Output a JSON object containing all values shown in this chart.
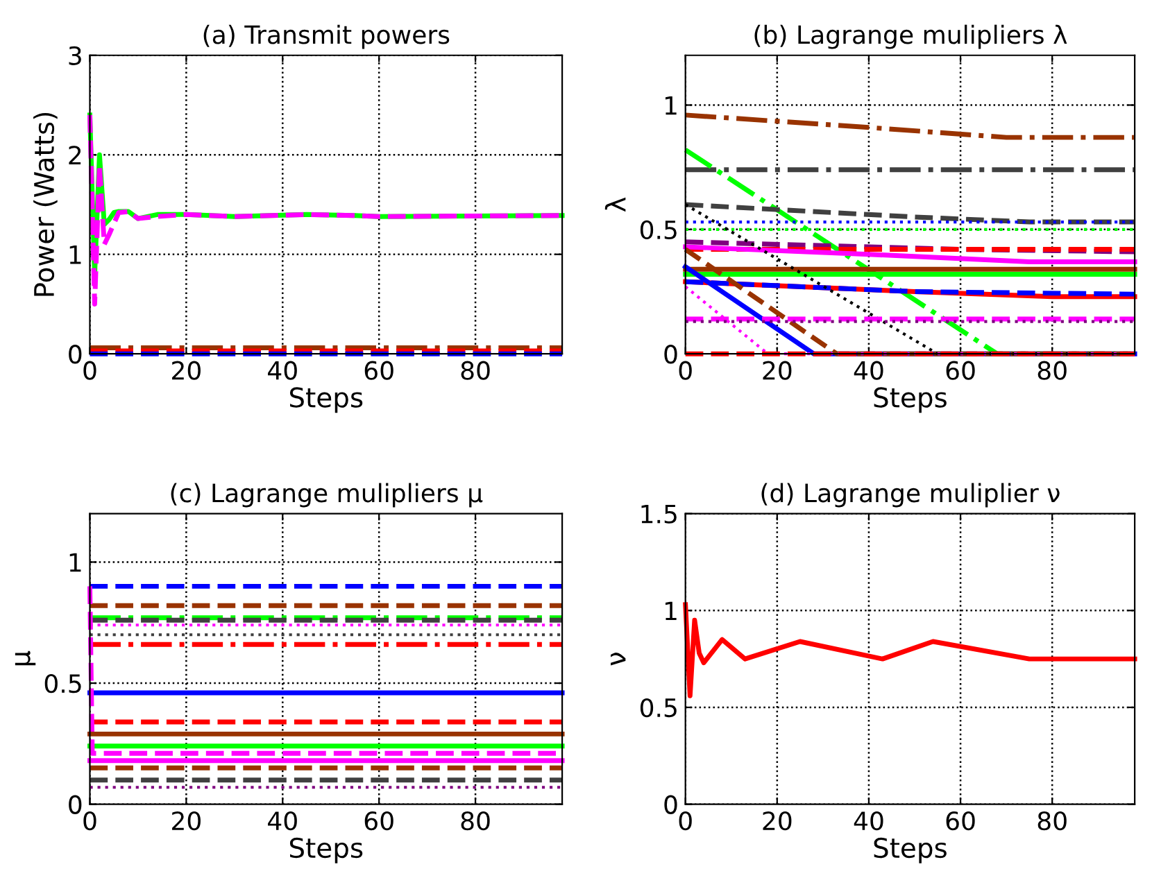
{
  "chart_data": [
    {
      "type": "line",
      "title": "(a) Transmit powers",
      "xlabel": "Steps",
      "ylabel": "Power (Watts)",
      "xlim": [
        0,
        98
      ],
      "xticks": [
        0,
        20,
        40,
        60,
        80
      ],
      "ylim": [
        0,
        3
      ],
      "yticks": [
        0,
        1,
        2,
        3
      ],
      "grid": true,
      "series": [
        {
          "color": "#00ff00",
          "line_style": "solid",
          "x": [
            0,
            1,
            2,
            3,
            4,
            5,
            6,
            8,
            10,
            14,
            20,
            30,
            45,
            55,
            60,
            98
          ],
          "values": [
            2.4,
            0.8,
            2.0,
            1.3,
            1.35,
            1.42,
            1.43,
            1.43,
            1.36,
            1.4,
            1.4,
            1.38,
            1.4,
            1.39,
            1.38,
            1.39
          ]
        },
        {
          "color": "#ff00ff",
          "line_style": "dashed",
          "x": [
            0,
            1,
            2,
            3,
            4,
            6,
            8,
            10,
            14,
            20,
            30,
            45,
            55,
            60,
            98
          ],
          "values": [
            2.4,
            0.5,
            1.9,
            1.1,
            1.2,
            1.42,
            1.43,
            1.36,
            1.38,
            1.4,
            1.38,
            1.4,
            1.39,
            1.38,
            1.39
          ]
        },
        {
          "color": "#993300",
          "line_style": "dashdot",
          "x": [
            0,
            98
          ],
          "values": [
            0.06,
            0.06
          ]
        },
        {
          "color": "#ff0000",
          "line_style": "dashed",
          "x": [
            0,
            98
          ],
          "values": [
            0.03,
            0.03
          ]
        },
        {
          "color": "#0000ff",
          "line_style": "dashed",
          "x": [
            0,
            98
          ],
          "values": [
            0,
            0
          ]
        }
      ]
    },
    {
      "type": "line",
      "title": "(b) Lagrange mulipliers λ",
      "xlabel": "Steps",
      "ylabel": "λ",
      "xlim": [
        0,
        98
      ],
      "xticks": [
        0,
        20,
        40,
        60,
        80
      ],
      "ylim": [
        0,
        1.2
      ],
      "yticks": [
        0,
        0.5,
        1
      ],
      "grid": true,
      "series": [
        {
          "color": "#993300",
          "line_style": "dashdot",
          "x": [
            0,
            40,
            70,
            98
          ],
          "values": [
            0.96,
            0.91,
            0.87,
            0.87
          ]
        },
        {
          "color": "#404040",
          "line_style": "dashdot",
          "x": [
            0,
            98
          ],
          "values": [
            0.74,
            0.74
          ]
        },
        {
          "color": "#00ff00",
          "line_style": "dashdot",
          "x": [
            0,
            68,
            98
          ],
          "values": [
            0.82,
            0,
            0
          ]
        },
        {
          "color": "#404040",
          "line_style": "dashed",
          "x": [
            0,
            50,
            75,
            98
          ],
          "values": [
            0.6,
            0.55,
            0.53,
            0.53
          ]
        },
        {
          "color": "#0000ff",
          "line_style": "dotted",
          "x": [
            0,
            98
          ],
          "values": [
            0.53,
            0.53
          ]
        },
        {
          "color": "#00ff00",
          "line_style": "dotted",
          "x": [
            0,
            98
          ],
          "values": [
            0.5,
            0.5
          ]
        },
        {
          "color": "#800080",
          "line_style": "dashed",
          "x": [
            0,
            60,
            98
          ],
          "values": [
            0.45,
            0.42,
            0.41
          ]
        },
        {
          "color": "#ff0000",
          "line_style": "dashed",
          "x": [
            0,
            98
          ],
          "values": [
            0.42,
            0.42
          ]
        },
        {
          "color": "#ff00ff",
          "line_style": "solid",
          "x": [
            0,
            40,
            75,
            98
          ],
          "values": [
            0.43,
            0.4,
            0.37,
            0.37
          ]
        },
        {
          "color": "#993300",
          "line_style": "solid",
          "x": [
            0,
            98
          ],
          "values": [
            0.34,
            0.34
          ]
        },
        {
          "color": "#00ff00",
          "line_style": "solid",
          "x": [
            0,
            98
          ],
          "values": [
            0.32,
            0.32
          ]
        },
        {
          "color": "#ff0000",
          "line_style": "solid",
          "x": [
            0,
            50,
            80,
            98
          ],
          "values": [
            0.29,
            0.25,
            0.23,
            0.23
          ]
        },
        {
          "color": "#0000ff",
          "line_style": "dashed",
          "x": [
            0,
            50,
            98
          ],
          "values": [
            0.29,
            0.25,
            0.24
          ]
        },
        {
          "color": "#0000ff",
          "line_style": "solid",
          "x": [
            0,
            28,
            98
          ],
          "values": [
            0.35,
            0,
            0
          ]
        },
        {
          "color": "#993300",
          "line_style": "dashed",
          "x": [
            0,
            33,
            98
          ],
          "values": [
            0.42,
            0,
            0
          ]
        },
        {
          "color": "#000000",
          "line_style": "dotted",
          "x": [
            0,
            55,
            98
          ],
          "values": [
            0.6,
            0,
            0
          ]
        },
        {
          "color": "#ff00ff",
          "line_style": "dotted",
          "x": [
            0,
            18,
            98
          ],
          "values": [
            0.27,
            0,
            0
          ]
        },
        {
          "color": "#ff00ff",
          "line_style": "dashed",
          "x": [
            0,
            98
          ],
          "values": [
            0.14,
            0.14
          ]
        },
        {
          "color": "#800080",
          "line_style": "dotted",
          "x": [
            0,
            98
          ],
          "values": [
            0.13,
            0.13
          ]
        },
        {
          "color": "#ff0000",
          "line_style": "dashed",
          "x": [
            0,
            98
          ],
          "values": [
            0,
            0
          ]
        }
      ]
    },
    {
      "type": "line",
      "title": "(c) Lagrange mulipliers μ",
      "xlabel": "Steps",
      "ylabel": "μ",
      "xlim": [
        0,
        98
      ],
      "xticks": [
        0,
        20,
        40,
        60,
        80
      ],
      "ylim": [
        0,
        1.2
      ],
      "yticks": [
        0,
        0.5,
        1
      ],
      "grid": true,
      "series": [
        {
          "color": "#0000ff",
          "line_style": "dashed",
          "x": [
            0,
            98
          ],
          "values": [
            0.9,
            0.9
          ]
        },
        {
          "color": "#993300",
          "line_style": "dashed",
          "x": [
            0,
            98
          ],
          "values": [
            0.82,
            0.82
          ]
        },
        {
          "color": "#00ff00",
          "line_style": "dashdot",
          "x": [
            0,
            98
          ],
          "values": [
            0.77,
            0.77
          ]
        },
        {
          "color": "#404040",
          "line_style": "dashed",
          "x": [
            0,
            98
          ],
          "values": [
            0.76,
            0.76
          ]
        },
        {
          "color": "#ff00ff",
          "line_style": "dotted",
          "x": [
            0,
            98
          ],
          "values": [
            0.74,
            0.74
          ]
        },
        {
          "color": "#404040",
          "line_style": "dotted",
          "x": [
            0,
            98
          ],
          "values": [
            0.7,
            0.7
          ]
        },
        {
          "color": "#ff0000",
          "line_style": "dashdot",
          "x": [
            0,
            98
          ],
          "values": [
            0.66,
            0.66
          ]
        },
        {
          "color": "#0000ff",
          "line_style": "solid",
          "x": [
            0,
            98
          ],
          "values": [
            0.46,
            0.46
          ]
        },
        {
          "color": "#ff0000",
          "line_style": "dashed",
          "x": [
            0,
            98
          ],
          "values": [
            0.34,
            0.34
          ]
        },
        {
          "color": "#993300",
          "line_style": "solid",
          "x": [
            0,
            98
          ],
          "values": [
            0.29,
            0.29
          ]
        },
        {
          "color": "#00ff00",
          "line_style": "solid",
          "x": [
            0,
            98
          ],
          "values": [
            0.24,
            0.24
          ]
        },
        {
          "color": "#ff00ff",
          "line_style": "dashed",
          "x": [
            0,
            0.5,
            98
          ],
          "values": [
            0.9,
            0.21,
            0.21
          ]
        },
        {
          "color": "#ff00ff",
          "line_style": "solid",
          "x": [
            0,
            98
          ],
          "values": [
            0.18,
            0.18
          ]
        },
        {
          "color": "#993300",
          "line_style": "dashed",
          "x": [
            0,
            98
          ],
          "values": [
            0.15,
            0.15
          ]
        },
        {
          "color": "#404040",
          "line_style": "dashed",
          "x": [
            0,
            98
          ],
          "values": [
            0.1,
            0.1
          ]
        },
        {
          "color": "#800080",
          "line_style": "dotted",
          "x": [
            0,
            98
          ],
          "values": [
            0.07,
            0.07
          ]
        }
      ]
    },
    {
      "type": "line",
      "title": "(d) Lagrange muliplier ν",
      "xlabel": "Steps",
      "ylabel": "ν",
      "xlim": [
        0,
        98
      ],
      "xticks": [
        0,
        20,
        40,
        60,
        80
      ],
      "ylim": [
        0,
        1.5
      ],
      "yticks": [
        0,
        0.5,
        1,
        1.5
      ],
      "grid": true,
      "series": [
        {
          "color": "#ff0000",
          "line_style": "solid",
          "x": [
            0,
            1,
            2,
            3,
            4,
            8,
            13,
            25,
            43,
            54,
            75,
            98
          ],
          "values": [
            1.03,
            0.56,
            0.95,
            0.78,
            0.73,
            0.85,
            0.75,
            0.84,
            0.75,
            0.84,
            0.75,
            0.75
          ]
        }
      ]
    }
  ]
}
